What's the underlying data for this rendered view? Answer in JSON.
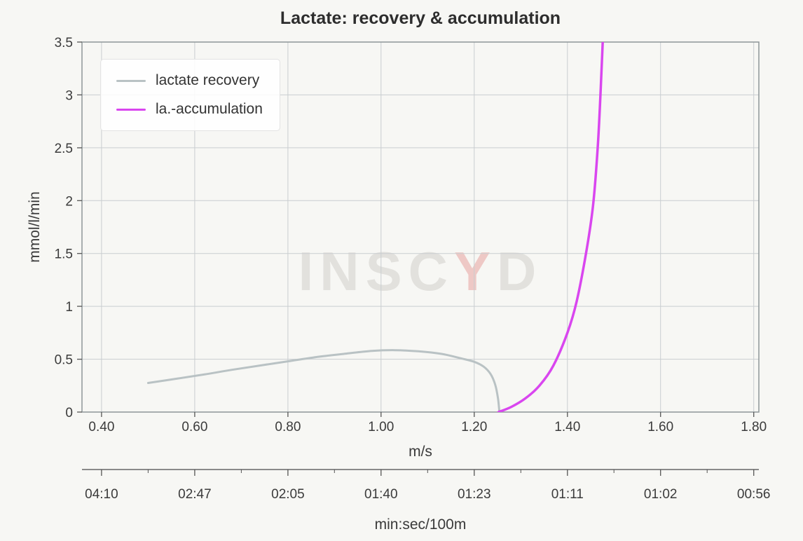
{
  "title": "Lactate: recovery & accumulation",
  "watermark": {
    "part1": "INSC",
    "part2": "Y",
    "part3": "D",
    "gray_color": "#e2e1dd",
    "accent_color": "#eec8c5"
  },
  "legend": [
    {
      "label": "lactate recovery",
      "color": "#b9c2c4"
    },
    {
      "label": "la.-accumulation",
      "color": "#d946ef"
    }
  ],
  "colors": {
    "background": "#f7f7f4",
    "grid": "#c9cdd0",
    "plot_border": "#8d9598",
    "tick": "#555555",
    "tick_text": "#3b3b3b",
    "secondary_axis": "#4a4a4a"
  },
  "chart_data": {
    "type": "line",
    "title": "Lactate: recovery & accumulation",
    "xlabel": "m/s",
    "ylabel": "mmol/l/min",
    "x2label": "min:sec/100m",
    "xlim": [
      0.358,
      1.811
    ],
    "ylim": [
      0,
      3.5
    ],
    "grid": true,
    "legend_position": "top-left",
    "x_ticks": [
      0.4,
      0.6,
      0.8,
      1.0,
      1.2,
      1.4,
      1.6,
      1.8
    ],
    "x_tick_labels": [
      "0.40",
      "0.60",
      "0.80",
      "1.00",
      "1.20",
      "1.40",
      "1.60",
      "1.80"
    ],
    "y_ticks": [
      0,
      0.5,
      1,
      1.5,
      2,
      2.5,
      3,
      3.5
    ],
    "y_tick_labels": [
      "0",
      "0.5",
      "1",
      "1.5",
      "2",
      "2.5",
      "3",
      "3.5"
    ],
    "x2_ticks": [
      0.4,
      0.6,
      0.8,
      1.0,
      1.2,
      1.4,
      1.6,
      1.8
    ],
    "x2_tick_labels": [
      "04:10",
      "02:47",
      "02:05",
      "01:40",
      "01:23",
      "01:11",
      "01:02",
      "00:56"
    ],
    "x2_minor_ticks": [
      0.5,
      0.7,
      0.9,
      1.1,
      1.3,
      1.5,
      1.7
    ],
    "series": [
      {
        "name": "lactate recovery",
        "color": "#b9c2c4",
        "width": 3,
        "points": [
          [
            0.5,
            0.275
          ],
          [
            0.56,
            0.315
          ],
          [
            0.62,
            0.355
          ],
          [
            0.68,
            0.4
          ],
          [
            0.74,
            0.44
          ],
          [
            0.8,
            0.48
          ],
          [
            0.86,
            0.52
          ],
          [
            0.92,
            0.55
          ],
          [
            0.98,
            0.578
          ],
          [
            1.03,
            0.585
          ],
          [
            1.08,
            0.575
          ],
          [
            1.13,
            0.55
          ],
          [
            1.17,
            0.51
          ],
          [
            1.2,
            0.475
          ],
          [
            1.22,
            0.43
          ],
          [
            1.235,
            0.36
          ],
          [
            1.245,
            0.26
          ],
          [
            1.251,
            0.13
          ],
          [
            1.254,
            0.0
          ]
        ]
      },
      {
        "name": "la.-accumulation",
        "color": "#d946ef",
        "width": 3.5,
        "points": [
          [
            1.252,
            0.0
          ],
          [
            1.28,
            0.05
          ],
          [
            1.31,
            0.13
          ],
          [
            1.34,
            0.25
          ],
          [
            1.37,
            0.44
          ],
          [
            1.4,
            0.75
          ],
          [
            1.42,
            1.05
          ],
          [
            1.44,
            1.5
          ],
          [
            1.455,
            1.95
          ],
          [
            1.465,
            2.5
          ],
          [
            1.472,
            3.1
          ],
          [
            1.479,
            3.85
          ]
        ]
      }
    ]
  }
}
